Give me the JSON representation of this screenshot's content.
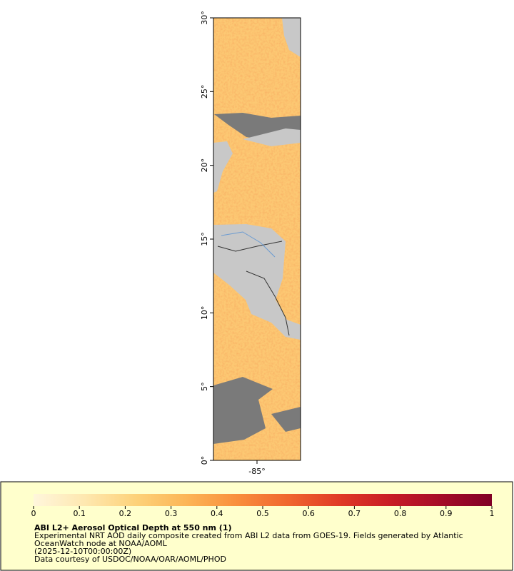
{
  "map": {
    "ylim": [
      0,
      30
    ],
    "xlim": [
      -88,
      -82
    ],
    "yticks": [
      {
        "value": 0,
        "label": "0°"
      },
      {
        "value": 5,
        "label": "5°"
      },
      {
        "value": 10,
        "label": "10°"
      },
      {
        "value": 15,
        "label": "15°"
      },
      {
        "value": 20,
        "label": "20°"
      },
      {
        "value": 25,
        "label": "25°"
      },
      {
        "value": 30,
        "label": "30°"
      }
    ],
    "xticks": [
      {
        "value": -85,
        "label": "-85°"
      }
    ]
  },
  "colorbar": {
    "lim": [
      0,
      1
    ],
    "ticks": [
      0,
      0.1,
      0.2,
      0.3,
      0.4,
      0.5,
      0.6,
      0.7,
      0.8,
      0.9,
      1
    ],
    "colors": [
      "#fff6dc",
      "#fee8b0",
      "#fdd27a",
      "#fcb556",
      "#f98e3c",
      "#f0662e",
      "#e03a26",
      "#c81c26",
      "#a50c28",
      "#800026"
    ]
  },
  "legend": {
    "title": "ABI L2+ Aerosol Optical Depth at 550 nm (1)",
    "lines": [
      "Experimental NRT AOD daily composite created from ABI L2 data from GOES-19. Fields generated by Atlantic",
      "OceanWatch node at NOAA/AOML",
      "(2025-12-10T00:00:00Z)",
      "Data courtesy of USDOC/NOAA/OAR/AOML/PHOD"
    ]
  }
}
